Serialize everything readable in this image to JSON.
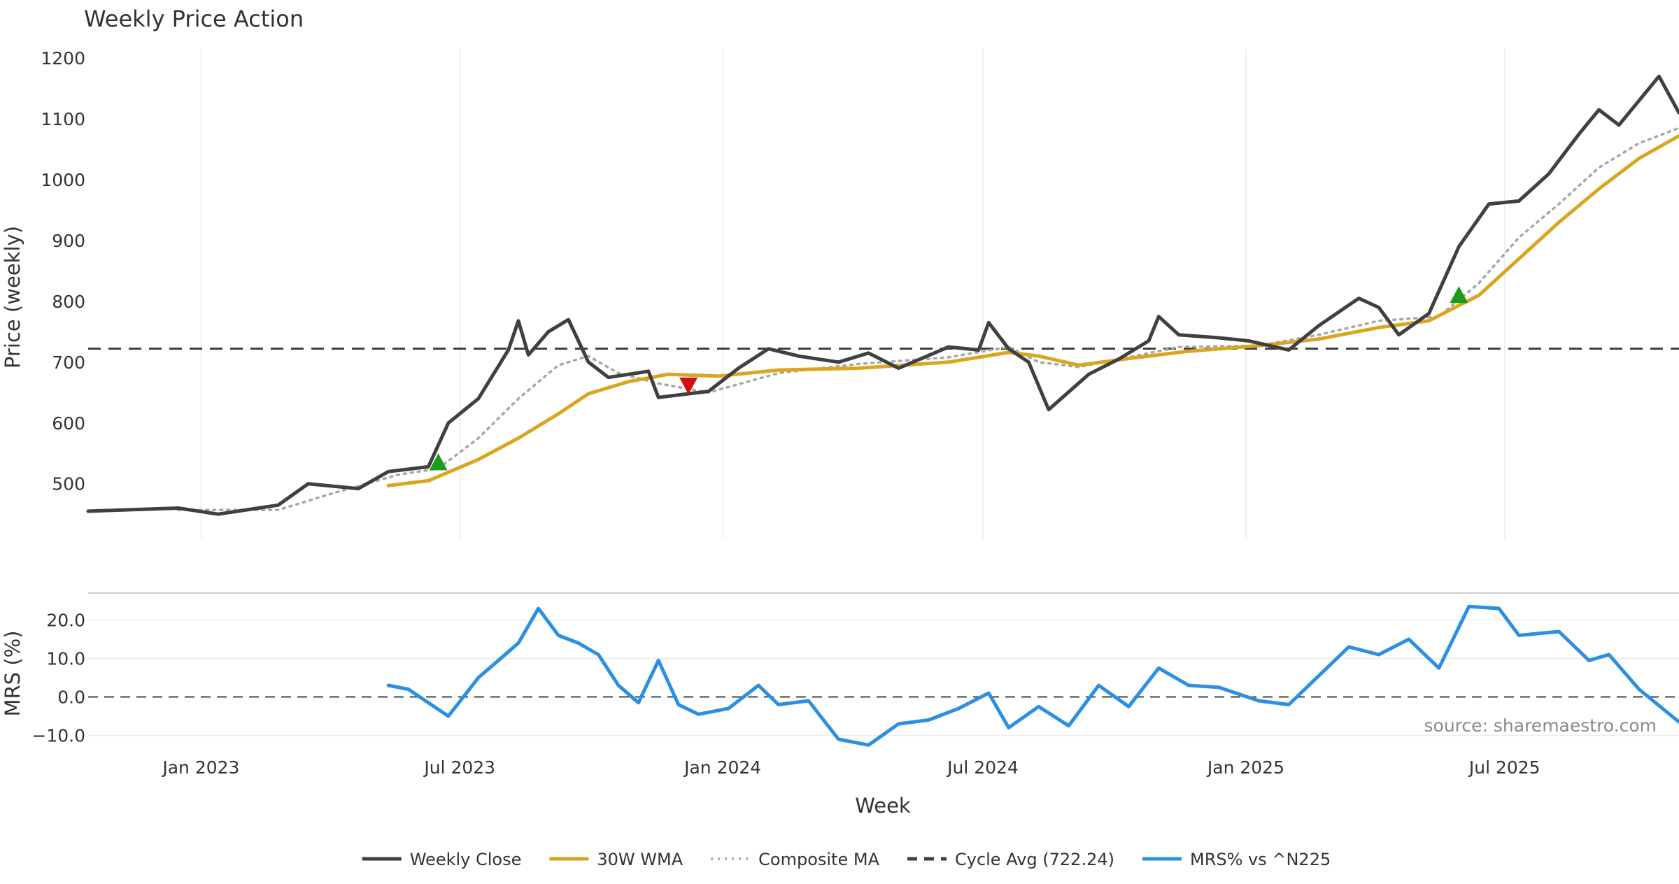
{
  "chart_data": {
    "type": "line",
    "title": "Weekly Price Action",
    "xlabel": "Week",
    "source": "source: sharemaestro.com",
    "x_start": "2022-10-14",
    "x_end": "2025-10-31",
    "x_ticks": [
      {
        "date": "2023-01-01",
        "label": "Jan 2023"
      },
      {
        "date": "2023-07-01",
        "label": "Jul 2023"
      },
      {
        "date": "2024-01-01",
        "label": "Jan 2024"
      },
      {
        "date": "2024-07-01",
        "label": "Jul 2024"
      },
      {
        "date": "2025-01-01",
        "label": "Jan 2025"
      },
      {
        "date": "2025-07-01",
        "label": "Jul 2025"
      }
    ],
    "price_panel": {
      "ylabel": "Price (weekly)",
      "ylim": [
        410,
        1215
      ],
      "yticks": [
        "500",
        "600",
        "700",
        "800",
        "900",
        "1000",
        "1100",
        "1200"
      ],
      "grid": "x-only"
    },
    "mrs_panel": {
      "ylabel": "MRS (%)",
      "ylim": [
        -13,
        27
      ],
      "yticks": [
        "−10.0",
        "0.0",
        "10.0",
        "20.0"
      ],
      "zero_line": true
    },
    "cycle_avg": 722.24,
    "series": [
      {
        "name": "Weekly Close",
        "color": "#404040",
        "style": "solid",
        "panel": "price",
        "points": [
          [
            "2022-10-14",
            455
          ],
          [
            "2022-12-16",
            460
          ],
          [
            "2023-01-13",
            450
          ],
          [
            "2023-02-24",
            465
          ],
          [
            "2023-03-17",
            500
          ],
          [
            "2023-04-21",
            492
          ],
          [
            "2023-05-12",
            520
          ],
          [
            "2023-06-09",
            528
          ],
          [
            "2023-06-23",
            600
          ],
          [
            "2023-07-14",
            640
          ],
          [
            "2023-08-04",
            720
          ],
          [
            "2023-08-11",
            768
          ],
          [
            "2023-08-18",
            712
          ],
          [
            "2023-09-01",
            750
          ],
          [
            "2023-09-15",
            770
          ],
          [
            "2023-09-29",
            700
          ],
          [
            "2023-10-13",
            675
          ],
          [
            "2023-11-10",
            685
          ],
          [
            "2023-11-17",
            642
          ],
          [
            "2023-12-08",
            648
          ],
          [
            "2023-12-22",
            652
          ],
          [
            "2024-01-12",
            690
          ],
          [
            "2024-02-02",
            722
          ],
          [
            "2024-02-23",
            710
          ],
          [
            "2024-03-22",
            700
          ],
          [
            "2024-04-12",
            715
          ],
          [
            "2024-05-03",
            690
          ],
          [
            "2024-06-07",
            725
          ],
          [
            "2024-06-28",
            720
          ],
          [
            "2024-07-05",
            765
          ],
          [
            "2024-07-19",
            722
          ],
          [
            "2024-08-02",
            700
          ],
          [
            "2024-08-16",
            622
          ],
          [
            "2024-09-13",
            680
          ],
          [
            "2024-10-04",
            705
          ],
          [
            "2024-10-25",
            735
          ],
          [
            "2024-11-01",
            775
          ],
          [
            "2024-11-15",
            745
          ],
          [
            "2024-12-13",
            740
          ],
          [
            "2025-01-03",
            735
          ],
          [
            "2025-01-31",
            720
          ],
          [
            "2025-02-21",
            760
          ],
          [
            "2025-03-21",
            805
          ],
          [
            "2025-04-04",
            790
          ],
          [
            "2025-04-18",
            745
          ],
          [
            "2025-05-09",
            780
          ],
          [
            "2025-05-30",
            890
          ],
          [
            "2025-06-20",
            960
          ],
          [
            "2025-07-11",
            965
          ],
          [
            "2025-08-01",
            1010
          ],
          [
            "2025-08-22",
            1075
          ],
          [
            "2025-09-05",
            1115
          ],
          [
            "2025-09-19",
            1090
          ],
          [
            "2025-10-03",
            1130
          ],
          [
            "2025-10-17",
            1170
          ],
          [
            "2025-10-31",
            1110
          ]
        ]
      },
      {
        "name": "30W WMA",
        "color": "#DAA520",
        "style": "solid",
        "panel": "price",
        "points": [
          [
            "2023-05-12",
            497
          ],
          [
            "2023-06-09",
            505
          ],
          [
            "2023-07-14",
            540
          ],
          [
            "2023-08-11",
            575
          ],
          [
            "2023-09-08",
            615
          ],
          [
            "2023-09-29",
            648
          ],
          [
            "2023-10-27",
            668
          ],
          [
            "2023-11-24",
            680
          ],
          [
            "2023-12-29",
            677
          ],
          [
            "2024-02-09",
            687
          ],
          [
            "2024-04-05",
            690
          ],
          [
            "2024-06-07",
            700
          ],
          [
            "2024-07-19",
            716
          ],
          [
            "2024-08-09",
            710
          ],
          [
            "2024-09-06",
            695
          ],
          [
            "2024-10-11",
            706
          ],
          [
            "2024-11-22",
            718
          ],
          [
            "2025-01-10",
            727
          ],
          [
            "2025-02-21",
            738
          ],
          [
            "2025-04-04",
            757
          ],
          [
            "2025-05-09",
            768
          ],
          [
            "2025-06-13",
            810
          ],
          [
            "2025-07-11",
            870
          ],
          [
            "2025-08-08",
            930
          ],
          [
            "2025-09-05",
            985
          ],
          [
            "2025-10-03",
            1035
          ],
          [
            "2025-10-31",
            1072
          ]
        ]
      },
      {
        "name": "Composite MA",
        "color": "#A8A8A8",
        "style": "dotted",
        "panel": "price",
        "points": [
          [
            "2022-12-16",
            457
          ],
          [
            "2023-02-24",
            457
          ],
          [
            "2023-04-07",
            487
          ],
          [
            "2023-05-19",
            515
          ],
          [
            "2023-06-16",
            525
          ],
          [
            "2023-07-14",
            575
          ],
          [
            "2023-08-11",
            640
          ],
          [
            "2023-09-08",
            695
          ],
          [
            "2023-09-29",
            710
          ],
          [
            "2023-10-20",
            682
          ],
          [
            "2023-11-17",
            665
          ],
          [
            "2023-12-22",
            650
          ],
          [
            "2024-02-09",
            682
          ],
          [
            "2024-04-05",
            697
          ],
          [
            "2024-06-07",
            708
          ],
          [
            "2024-07-19",
            725
          ],
          [
            "2024-08-09",
            700
          ],
          [
            "2024-09-06",
            692
          ],
          [
            "2024-10-11",
            708
          ],
          [
            "2024-11-15",
            725
          ],
          [
            "2025-01-10",
            727
          ],
          [
            "2025-02-21",
            745
          ],
          [
            "2025-04-04",
            768
          ],
          [
            "2025-05-16",
            775
          ],
          [
            "2025-06-13",
            830
          ],
          [
            "2025-07-11",
            905
          ],
          [
            "2025-08-08",
            960
          ],
          [
            "2025-09-05",
            1020
          ],
          [
            "2025-10-03",
            1060
          ],
          [
            "2025-10-31",
            1085
          ]
        ]
      },
      {
        "name": "Cycle Avg (722.24)",
        "color": "#404040",
        "style": "dashed",
        "panel": "price",
        "value": 722.24
      },
      {
        "name": "MRS% vs ^N225",
        "color": "#2B8FE2",
        "style": "solid",
        "panel": "mrs",
        "points": [
          [
            "2023-05-12",
            3
          ],
          [
            "2023-05-26",
            2
          ],
          [
            "2023-06-09",
            -1.5
          ],
          [
            "2023-06-23",
            -5
          ],
          [
            "2023-07-14",
            5
          ],
          [
            "2023-07-28",
            9.5
          ],
          [
            "2023-08-11",
            14
          ],
          [
            "2023-08-25",
            23
          ],
          [
            "2023-09-08",
            16
          ],
          [
            "2023-09-22",
            14
          ],
          [
            "2023-10-06",
            11
          ],
          [
            "2023-10-20",
            3
          ],
          [
            "2023-11-03",
            -1.5
          ],
          [
            "2023-11-17",
            9.5
          ],
          [
            "2023-12-01",
            -2
          ],
          [
            "2023-12-15",
            -4.5
          ],
          [
            "2024-01-05",
            -3
          ],
          [
            "2024-01-26",
            3
          ],
          [
            "2024-02-09",
            -2
          ],
          [
            "2024-03-01",
            -1
          ],
          [
            "2024-03-22",
            -11
          ],
          [
            "2024-04-12",
            -12.5
          ],
          [
            "2024-05-03",
            -7
          ],
          [
            "2024-05-24",
            -6
          ],
          [
            "2024-06-14",
            -3
          ],
          [
            "2024-07-05",
            1
          ],
          [
            "2024-07-19",
            -8
          ],
          [
            "2024-08-09",
            -2.5
          ],
          [
            "2024-08-30",
            -7.5
          ],
          [
            "2024-09-20",
            3
          ],
          [
            "2024-10-11",
            -2.5
          ],
          [
            "2024-11-01",
            7.5
          ],
          [
            "2024-11-22",
            3
          ],
          [
            "2024-12-13",
            2.5
          ],
          [
            "2025-01-10",
            -1
          ],
          [
            "2025-01-31",
            -2
          ],
          [
            "2025-02-21",
            5.5
          ],
          [
            "2025-03-14",
            13
          ],
          [
            "2025-04-04",
            11
          ],
          [
            "2025-04-25",
            15
          ],
          [
            "2025-05-16",
            7.5
          ],
          [
            "2025-06-06",
            23.5
          ],
          [
            "2025-06-27",
            23
          ],
          [
            "2025-07-11",
            16
          ],
          [
            "2025-08-08",
            17
          ],
          [
            "2025-08-29",
            9.5
          ],
          [
            "2025-09-12",
            11
          ],
          [
            "2025-10-03",
            2
          ],
          [
            "2025-10-31",
            -6.5
          ]
        ]
      }
    ],
    "signals": [
      {
        "type": "buy",
        "date": "2023-06-16",
        "price": 535,
        "color": "#1A9C1A"
      },
      {
        "type": "sell",
        "date": "2023-12-08",
        "price": 662,
        "color": "#D01010"
      },
      {
        "type": "buy",
        "date": "2025-05-30",
        "price": 810,
        "color": "#1A9C1A"
      }
    ],
    "legend": {
      "position": "bottom-center",
      "items": [
        {
          "label": "Weekly Close",
          "color": "#404040",
          "style": "solid"
        },
        {
          "label": "30W WMA",
          "color": "#DAA520",
          "style": "solid"
        },
        {
          "label": "Composite MA",
          "color": "#A8A8A8",
          "style": "dotted"
        },
        {
          "label": "Cycle Avg (722.24)",
          "color": "#404040",
          "style": "dashed"
        },
        {
          "label": "MRS% vs ^N225",
          "color": "#2B8FE2",
          "style": "solid"
        }
      ]
    }
  }
}
